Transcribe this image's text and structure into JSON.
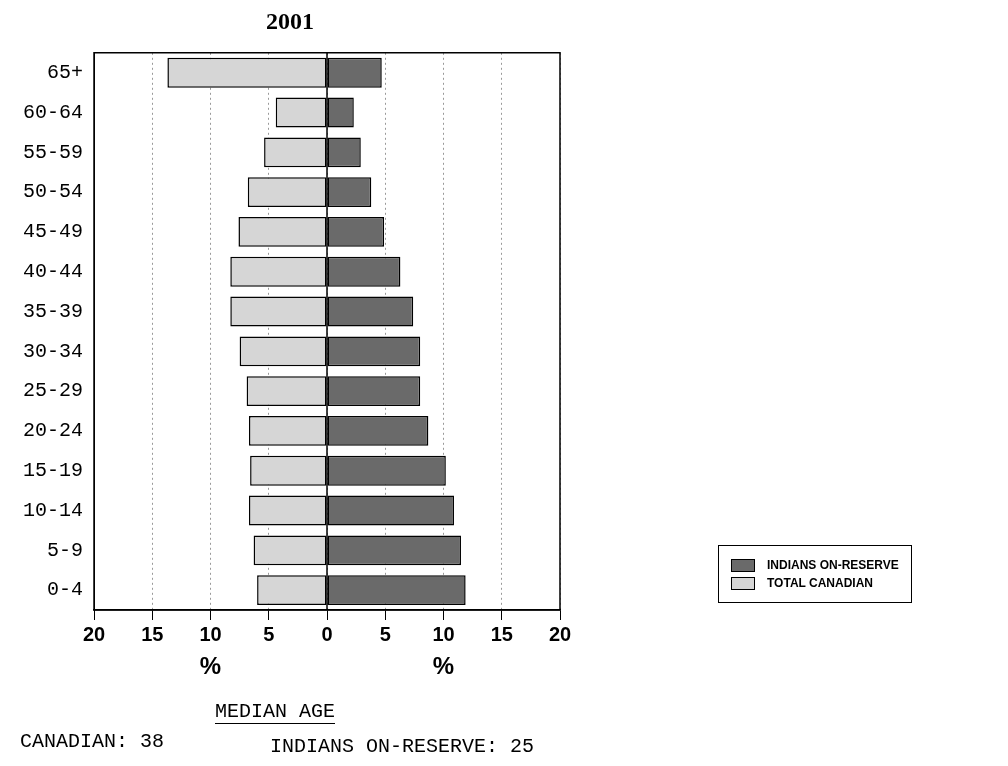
{
  "chart_data": {
    "type": "bar",
    "orientation": "horizontal",
    "stacked": true,
    "title": "2001",
    "xlabel": "%",
    "categories": [
      "65+",
      "60-64",
      "55-59",
      "50-54",
      "45-49",
      "40-44",
      "35-39",
      "30-34",
      "25-29",
      "20-24",
      "15-19",
      "10-14",
      "5-9",
      "0-4"
    ],
    "series": [
      {
        "name": "INDIANS ON-RESERVE",
        "color": "#6a6a6a",
        "values": [
          4.7,
          2.3,
          2.9,
          3.8,
          4.9,
          6.3,
          7.4,
          8.0,
          8.0,
          8.7,
          10.2,
          10.9,
          11.5,
          11.9
        ]
      },
      {
        "name": "TOTAL CANADIAN",
        "color": "#d6d6d6",
        "values": [
          -13.7,
          -4.4,
          -5.4,
          -6.8,
          -7.6,
          -8.3,
          -8.3,
          -7.5,
          -6.9,
          -6.7,
          -6.6,
          -6.7,
          -6.3,
          -6.0
        ]
      }
    ],
    "xlim": [
      -20,
      20
    ],
    "xticks": [
      {
        "value": -20,
        "label": "20"
      },
      {
        "value": -15,
        "label": "15"
      },
      {
        "value": -10,
        "label": "10"
      },
      {
        "value": -5,
        "label": "5"
      },
      0,
      5,
      10,
      15,
      20
    ],
    "grid": "x",
    "legend": "right",
    "annotations": [
      "CANADIAN: 38",
      "MEDIAN AGE",
      "INDIANS ON-RESERVE: 25"
    ]
  }
}
